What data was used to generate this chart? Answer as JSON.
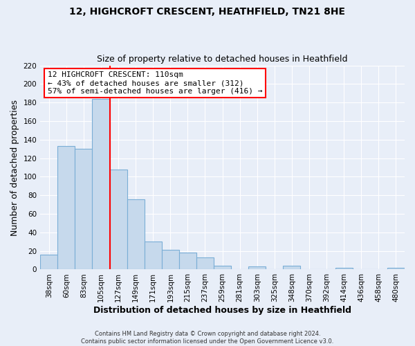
{
  "title": "12, HIGHCROFT CRESCENT, HEATHFIELD, TN21 8HE",
  "subtitle": "Size of property relative to detached houses in Heathfield",
  "xlabel": "Distribution of detached houses by size in Heathfield",
  "ylabel": "Number of detached properties",
  "bar_labels": [
    "38sqm",
    "60sqm",
    "83sqm",
    "105sqm",
    "127sqm",
    "149sqm",
    "171sqm",
    "193sqm",
    "215sqm",
    "237sqm",
    "259sqm",
    "281sqm",
    "303sqm",
    "325sqm",
    "348sqm",
    "370sqm",
    "392sqm",
    "414sqm",
    "436sqm",
    "458sqm",
    "480sqm"
  ],
  "bar_heights": [
    16,
    133,
    130,
    184,
    108,
    76,
    30,
    21,
    18,
    13,
    4,
    0,
    3,
    0,
    4,
    0,
    0,
    2,
    0,
    0,
    2
  ],
  "bar_color": "#c6d9ec",
  "bar_edge_color": "#7aaed6",
  "vline_x": 3.5,
  "vline_color": "red",
  "ylim": [
    0,
    220
  ],
  "yticks": [
    0,
    20,
    40,
    60,
    80,
    100,
    120,
    140,
    160,
    180,
    200,
    220
  ],
  "annotation_title": "12 HIGHCROFT CRESCENT: 110sqm",
  "annotation_line1": "← 43% of detached houses are smaller (312)",
  "annotation_line2": "57% of semi-detached houses are larger (416) →",
  "footer_line1": "Contains HM Land Registry data © Crown copyright and database right 2024.",
  "footer_line2": "Contains public sector information licensed under the Open Government Licence v3.0.",
  "background_color": "#e8eef8",
  "plot_background": "#e8eef8",
  "title_fontsize": 10,
  "subtitle_fontsize": 9,
  "label_fontsize": 9,
  "tick_fontsize": 7.5,
  "annotation_fontsize": 8,
  "footer_fontsize": 6
}
